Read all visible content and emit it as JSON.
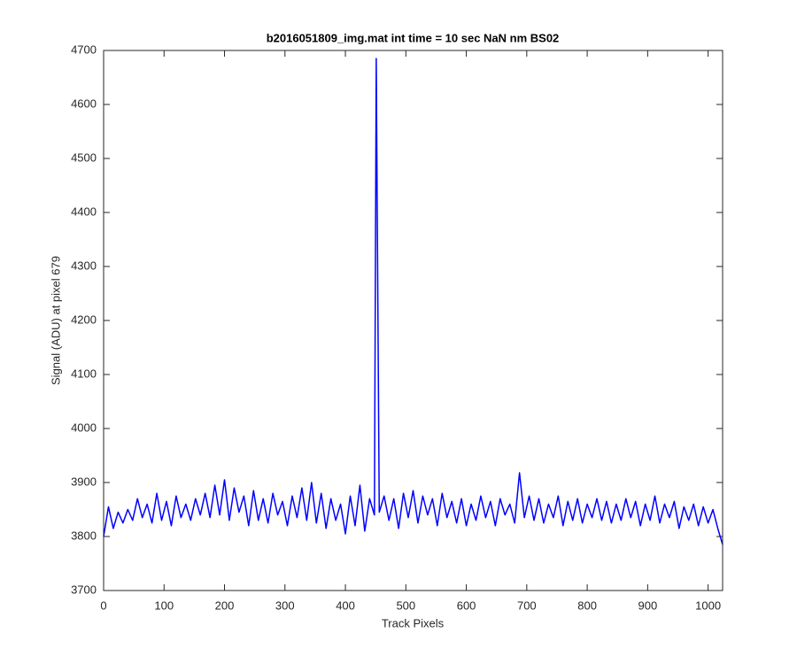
{
  "chart_data": {
    "type": "line",
    "title": "b2016051809_img.mat int time = 10 sec  NaN nm BS02",
    "x_label": "Track Pixels",
    "y_label": "Signal (ADU) at pixel 679",
    "xlim": [
      0,
      1024
    ],
    "ylim": [
      3700,
      4700
    ],
    "xticks": [
      0,
      100,
      200,
      300,
      400,
      500,
      600,
      700,
      800,
      900,
      1000
    ],
    "yticks": [
      3700,
      3800,
      3900,
      4000,
      4100,
      4200,
      4300,
      4400,
      4500,
      4600,
      4700
    ],
    "grid": false,
    "x": [
      0,
      8,
      16,
      24,
      32,
      40,
      48,
      56,
      64,
      72,
      80,
      88,
      96,
      104,
      112,
      120,
      128,
      136,
      144,
      152,
      160,
      168,
      176,
      184,
      192,
      200,
      208,
      216,
      224,
      232,
      240,
      248,
      256,
      264,
      272,
      280,
      288,
      296,
      304,
      312,
      320,
      328,
      336,
      344,
      352,
      360,
      368,
      376,
      384,
      392,
      400,
      408,
      416,
      424,
      432,
      440,
      448,
      451,
      456,
      464,
      472,
      480,
      488,
      496,
      504,
      512,
      520,
      528,
      536,
      544,
      552,
      560,
      568,
      576,
      584,
      592,
      600,
      608,
      616,
      624,
      632,
      640,
      648,
      656,
      664,
      672,
      680,
      688,
      696,
      704,
      712,
      720,
      728,
      736,
      744,
      752,
      760,
      768,
      776,
      784,
      792,
      800,
      808,
      816,
      824,
      832,
      840,
      848,
      856,
      864,
      872,
      880,
      888,
      896,
      904,
      912,
      920,
      928,
      936,
      944,
      952,
      960,
      968,
      976,
      984,
      992,
      1000,
      1008,
      1016,
      1024
    ],
    "series": [
      {
        "color": "#0000ff",
        "values": [
          3800,
          3855,
          3815,
          3845,
          3825,
          3850,
          3830,
          3870,
          3835,
          3860,
          3825,
          3880,
          3830,
          3865,
          3820,
          3875,
          3835,
          3860,
          3830,
          3870,
          3840,
          3880,
          3835,
          3895,
          3840,
          3905,
          3830,
          3890,
          3845,
          3875,
          3820,
          3885,
          3830,
          3870,
          3825,
          3880,
          3840,
          3865,
          3820,
          3875,
          3835,
          3890,
          3830,
          3900,
          3825,
          3880,
          3815,
          3870,
          3830,
          3860,
          3805,
          3875,
          3820,
          3895,
          3810,
          3870,
          3840,
          4685,
          3845,
          3875,
          3830,
          3870,
          3815,
          3880,
          3835,
          3885,
          3825,
          3875,
          3840,
          3870,
          3820,
          3880,
          3835,
          3865,
          3825,
          3870,
          3820,
          3860,
          3830,
          3875,
          3835,
          3865,
          3820,
          3870,
          3840,
          3860,
          3825,
          3918,
          3835,
          3875,
          3830,
          3870,
          3825,
          3860,
          3835,
          3875,
          3820,
          3865,
          3830,
          3870,
          3825,
          3860,
          3835,
          3870,
          3830,
          3865,
          3825,
          3860,
          3830,
          3870,
          3835,
          3865,
          3820,
          3860,
          3830,
          3875,
          3825,
          3860,
          3835,
          3865,
          3815,
          3855,
          3830,
          3860,
          3820,
          3855,
          3825,
          3850,
          3815,
          3785
        ]
      }
    ]
  }
}
